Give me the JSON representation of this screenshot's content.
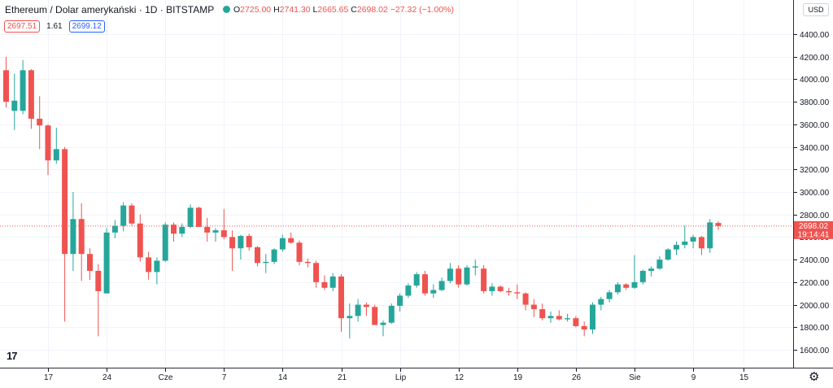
{
  "header": {
    "symbol": "Ethereum / Dolar amerykański",
    "interval": "1D",
    "exchange": "BITSTAMP",
    "open_label": "O",
    "open": "2725.00",
    "high_label": "H",
    "high": "2741.30",
    "low_label": "L",
    "low": "2665.65",
    "close_label": "C",
    "close": "2698.02",
    "change": "−27.32 (−1.00%)"
  },
  "quote": {
    "bid": "2697.51",
    "spread": "1.61",
    "ask": "2699.12"
  },
  "currency_button": "USD",
  "logo_text": "17",
  "price_label": {
    "price": "2698.02",
    "countdown": "19:14:41"
  },
  "colors": {
    "up": "#26a69a",
    "down": "#ef5350",
    "grid": "#f0f3fa",
    "axis": "#131722"
  },
  "chart_data": {
    "type": "candlestick",
    "ylim": [
      1400,
      4600
    ],
    "yticks": [
      1600,
      1800,
      2000,
      2200,
      2400,
      2600,
      2800,
      3000,
      3200,
      3400,
      3600,
      3800,
      4000,
      4200,
      4400
    ],
    "xtick_labels": [
      "17",
      "24",
      "Cze",
      "7",
      "14",
      "21",
      "Lip",
      "12",
      "19",
      "26",
      "Sie",
      "9",
      "15"
    ],
    "xtick_bar_index": [
      5,
      12,
      19,
      26,
      33,
      40,
      47,
      54,
      61,
      68,
      75,
      82,
      88
    ],
    "last_price": 2698.02,
    "grid": true,
    "candles": [
      {
        "o": 4080,
        "h": 4200,
        "l": 3750,
        "c": 3800
      },
      {
        "o": 3720,
        "h": 4050,
        "l": 3550,
        "c": 3810
      },
      {
        "o": 3720,
        "h": 4170,
        "l": 3690,
        "c": 4080
      },
      {
        "o": 4080,
        "h": 4090,
        "l": 3560,
        "c": 3650
      },
      {
        "o": 3650,
        "h": 3850,
        "l": 3380,
        "c": 3590
      },
      {
        "o": 3590,
        "h": 3600,
        "l": 3150,
        "c": 3280
      },
      {
        "o": 3280,
        "h": 3570,
        "l": 3250,
        "c": 3380
      },
      {
        "o": 3380,
        "h": 3400,
        "l": 1850,
        "c": 2450
      },
      {
        "o": 2450,
        "h": 3000,
        "l": 2300,
        "c": 2760
      },
      {
        "o": 2760,
        "h": 2900,
        "l": 2210,
        "c": 2450
      },
      {
        "o": 2450,
        "h": 2500,
        "l": 2220,
        "c": 2300
      },
      {
        "o": 2300,
        "h": 2360,
        "l": 1720,
        "c": 2120
      },
      {
        "o": 2100,
        "h": 2680,
        "l": 2100,
        "c": 2640
      },
      {
        "o": 2640,
        "h": 2750,
        "l": 2590,
        "c": 2700
      },
      {
        "o": 2700,
        "h": 2910,
        "l": 2650,
        "c": 2880
      },
      {
        "o": 2880,
        "h": 2900,
        "l": 2700,
        "c": 2720
      },
      {
        "o": 2720,
        "h": 2800,
        "l": 2380,
        "c": 2420
      },
      {
        "o": 2420,
        "h": 2470,
        "l": 2220,
        "c": 2290
      },
      {
        "o": 2290,
        "h": 2420,
        "l": 2180,
        "c": 2390
      },
      {
        "o": 2390,
        "h": 2730,
        "l": 2380,
        "c": 2710
      },
      {
        "o": 2710,
        "h": 2730,
        "l": 2560,
        "c": 2630
      },
      {
        "o": 2630,
        "h": 2720,
        "l": 2600,
        "c": 2690
      },
      {
        "o": 2690,
        "h": 2890,
        "l": 2680,
        "c": 2860
      },
      {
        "o": 2860,
        "h": 2870,
        "l": 2700,
        "c": 2690
      },
      {
        "o": 2690,
        "h": 2770,
        "l": 2560,
        "c": 2640
      },
      {
        "o": 2640,
        "h": 2680,
        "l": 2560,
        "c": 2660
      },
      {
        "o": 2660,
        "h": 2850,
        "l": 2580,
        "c": 2600
      },
      {
        "o": 2600,
        "h": 2660,
        "l": 2300,
        "c": 2500
      },
      {
        "o": 2500,
        "h": 2620,
        "l": 2400,
        "c": 2610
      },
      {
        "o": 2610,
        "h": 2630,
        "l": 2480,
        "c": 2510
      },
      {
        "o": 2510,
        "h": 2520,
        "l": 2340,
        "c": 2370
      },
      {
        "o": 2370,
        "h": 2450,
        "l": 2280,
        "c": 2380
      },
      {
        "o": 2380,
        "h": 2500,
        "l": 2360,
        "c": 2490
      },
      {
        "o": 2490,
        "h": 2620,
        "l": 2470,
        "c": 2590
      },
      {
        "o": 2590,
        "h": 2640,
        "l": 2540,
        "c": 2550
      },
      {
        "o": 2550,
        "h": 2570,
        "l": 2350,
        "c": 2380
      },
      {
        "o": 2380,
        "h": 2410,
        "l": 2330,
        "c": 2370
      },
      {
        "o": 2370,
        "h": 2390,
        "l": 2150,
        "c": 2200
      },
      {
        "o": 2200,
        "h": 2260,
        "l": 2130,
        "c": 2150
      },
      {
        "o": 2150,
        "h": 2280,
        "l": 2120,
        "c": 2250
      },
      {
        "o": 2250,
        "h": 2270,
        "l": 1760,
        "c": 1880
      },
      {
        "o": 1880,
        "h": 2010,
        "l": 1700,
        "c": 1900
      },
      {
        "o": 1900,
        "h": 2050,
        "l": 1850,
        "c": 2000
      },
      {
        "o": 2000,
        "h": 2020,
        "l": 1900,
        "c": 1980
      },
      {
        "o": 1980,
        "h": 2000,
        "l": 1820,
        "c": 1820
      },
      {
        "o": 1820,
        "h": 1860,
        "l": 1720,
        "c": 1840
      },
      {
        "o": 1840,
        "h": 2010,
        "l": 1830,
        "c": 1990
      },
      {
        "o": 1990,
        "h": 2100,
        "l": 1940,
        "c": 2080
      },
      {
        "o": 2080,
        "h": 2190,
        "l": 2060,
        "c": 2170
      },
      {
        "o": 2170,
        "h": 2290,
        "l": 2150,
        "c": 2270
      },
      {
        "o": 2270,
        "h": 2300,
        "l": 2080,
        "c": 2100
      },
      {
        "o": 2100,
        "h": 2180,
        "l": 2060,
        "c": 2130
      },
      {
        "o": 2130,
        "h": 2240,
        "l": 2120,
        "c": 2210
      },
      {
        "o": 2210,
        "h": 2370,
        "l": 2190,
        "c": 2320
      },
      {
        "o": 2320,
        "h": 2350,
        "l": 2150,
        "c": 2180
      },
      {
        "o": 2180,
        "h": 2350,
        "l": 2170,
        "c": 2330
      },
      {
        "o": 2330,
        "h": 2400,
        "l": 2260,
        "c": 2340
      },
      {
        "o": 2320,
        "h": 2350,
        "l": 2100,
        "c": 2120
      },
      {
        "o": 2120,
        "h": 2190,
        "l": 2080,
        "c": 2160
      },
      {
        "o": 2160,
        "h": 2170,
        "l": 2110,
        "c": 2120
      },
      {
        "o": 2120,
        "h": 2150,
        "l": 2080,
        "c": 2110
      },
      {
        "o": 2110,
        "h": 2180,
        "l": 2050,
        "c": 2100
      },
      {
        "o": 2100,
        "h": 2110,
        "l": 1950,
        "c": 2000
      },
      {
        "o": 2000,
        "h": 2050,
        "l": 1890,
        "c": 1960
      },
      {
        "o": 1960,
        "h": 2010,
        "l": 1860,
        "c": 1880
      },
      {
        "o": 1880,
        "h": 1940,
        "l": 1840,
        "c": 1900
      },
      {
        "o": 1900,
        "h": 1950,
        "l": 1860,
        "c": 1870
      },
      {
        "o": 1870,
        "h": 1920,
        "l": 1850,
        "c": 1880
      },
      {
        "o": 1880,
        "h": 1900,
        "l": 1800,
        "c": 1810
      },
      {
        "o": 1810,
        "h": 1850,
        "l": 1720,
        "c": 1780
      },
      {
        "o": 1780,
        "h": 2020,
        "l": 1740,
        "c": 2000
      },
      {
        "o": 2000,
        "h": 2070,
        "l": 1950,
        "c": 2050
      },
      {
        "o": 2050,
        "h": 2130,
        "l": 2020,
        "c": 2110
      },
      {
        "o": 2110,
        "h": 2200,
        "l": 2090,
        "c": 2180
      },
      {
        "o": 2180,
        "h": 2190,
        "l": 2130,
        "c": 2150
      },
      {
        "o": 2150,
        "h": 2440,
        "l": 2140,
        "c": 2200
      },
      {
        "o": 2200,
        "h": 2310,
        "l": 2180,
        "c": 2300
      },
      {
        "o": 2300,
        "h": 2340,
        "l": 2250,
        "c": 2320
      },
      {
        "o": 2320,
        "h": 2430,
        "l": 2310,
        "c": 2400
      },
      {
        "o": 2400,
        "h": 2500,
        "l": 2390,
        "c": 2490
      },
      {
        "o": 2490,
        "h": 2560,
        "l": 2440,
        "c": 2530
      },
      {
        "o": 2530,
        "h": 2700,
        "l": 2500,
        "c": 2560
      },
      {
        "o": 2560,
        "h": 2620,
        "l": 2500,
        "c": 2600
      },
      {
        "o": 2600,
        "h": 2610,
        "l": 2440,
        "c": 2500
      },
      {
        "o": 2500,
        "h": 2760,
        "l": 2460,
        "c": 2730
      },
      {
        "o": 2725,
        "h": 2741.3,
        "l": 2665.65,
        "c": 2698.02
      }
    ]
  }
}
